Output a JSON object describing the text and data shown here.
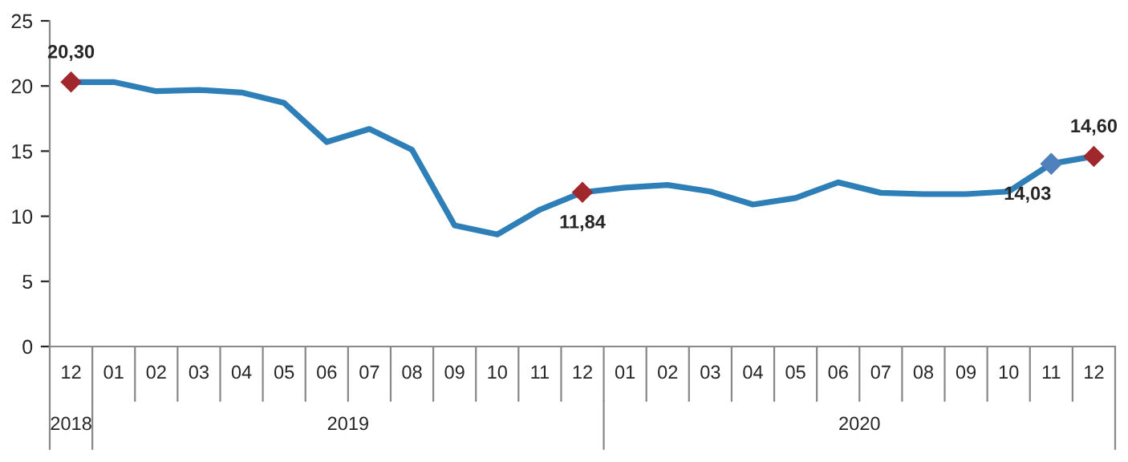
{
  "chart_data": {
    "type": "line",
    "categories": [
      "12",
      "01",
      "02",
      "03",
      "04",
      "05",
      "06",
      "07",
      "08",
      "09",
      "10",
      "11",
      "12",
      "01",
      "02",
      "03",
      "04",
      "05",
      "06",
      "07",
      "08",
      "09",
      "10",
      "11",
      "12"
    ],
    "series": [
      {
        "color": "#2e7fb8",
        "values": [
          20.3,
          20.3,
          19.6,
          19.7,
          19.5,
          18.7,
          15.7,
          16.7,
          15.1,
          9.3,
          8.6,
          10.5,
          11.84,
          12.2,
          12.4,
          11.9,
          10.9,
          11.4,
          12.6,
          11.8,
          11.7,
          11.7,
          11.9,
          14.03,
          14.6
        ],
        "colors": [
          "#a0282d",
          null,
          null,
          null,
          null,
          null,
          null,
          null,
          null,
          null,
          null,
          null,
          "#a0282d",
          null,
          null,
          null,
          null,
          null,
          null,
          null,
          null,
          null,
          null,
          "#4f81bd",
          "#a0282d"
        ],
        "value_labels": [
          "20,30",
          null,
          null,
          null,
          null,
          null,
          null,
          null,
          null,
          null,
          null,
          null,
          "11,84",
          null,
          null,
          null,
          null,
          null,
          null,
          null,
          null,
          null,
          null,
          "14,03",
          "14,60"
        ]
      }
    ],
    "annotations": [
      "2018",
      "2019",
      "2020"
    ],
    "ylim": [
      0,
      25
    ],
    "yticks": [
      0,
      5,
      10,
      15,
      20,
      25
    ],
    "line_style": "solid",
    "grid": false,
    "legend": false
  }
}
